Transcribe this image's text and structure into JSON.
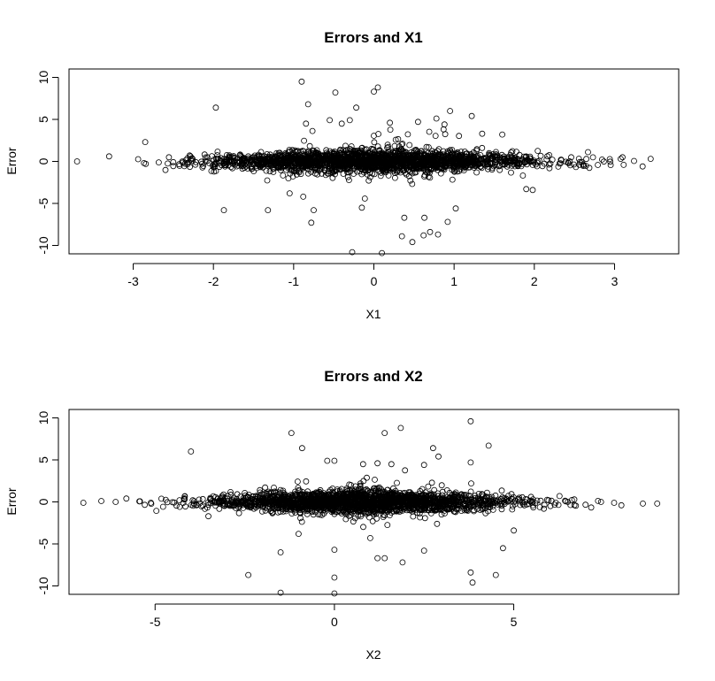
{
  "chart_data": [
    {
      "type": "scatter",
      "title": "Errors and X1",
      "xlabel": "X1",
      "ylabel": "Error",
      "xlim": [
        -3.8,
        3.8
      ],
      "ylim": [
        -11,
        11
      ],
      "xticks": [
        -3,
        -2,
        -1,
        0,
        1,
        2,
        3
      ],
      "yticks": [
        -10,
        -5,
        0,
        5,
        10
      ],
      "grid": false,
      "legend": "none",
      "cloud": {
        "n": 2200,
        "x_sd": 1.0,
        "x_range": [
          -3.3,
          3.3
        ],
        "y_sd_center": 0.75,
        "y_sd_edge": 0.25
      },
      "outliers": [
        {
          "x": -3.7,
          "y": 0.0
        },
        {
          "x": 3.45,
          "y": 0.3
        },
        {
          "x": 3.35,
          "y": -0.6
        },
        {
          "x": -3.3,
          "y": 0.6
        },
        {
          "x": -0.9,
          "y": 9.5
        },
        {
          "x": 0.05,
          "y": 8.8
        },
        {
          "x": 0.0,
          "y": 8.3
        },
        {
          "x": -0.48,
          "y": 8.2
        },
        {
          "x": -0.82,
          "y": 6.8
        },
        {
          "x": -0.22,
          "y": 6.4
        },
        {
          "x": -1.97,
          "y": 6.4
        },
        {
          "x": 0.95,
          "y": 6.0
        },
        {
          "x": 1.22,
          "y": 5.4
        },
        {
          "x": 0.78,
          "y": 5.1
        },
        {
          "x": -0.55,
          "y": 4.9
        },
        {
          "x": -0.3,
          "y": 4.9
        },
        {
          "x": 0.55,
          "y": 4.7
        },
        {
          "x": -0.4,
          "y": 4.5
        },
        {
          "x": 0.2,
          "y": 4.6
        },
        {
          "x": 0.88,
          "y": 4.4
        },
        {
          "x": 1.35,
          "y": 3.3
        },
        {
          "x": 1.6,
          "y": 3.2
        },
        {
          "x": -1.87,
          "y": -5.8
        },
        {
          "x": -1.32,
          "y": -5.8
        },
        {
          "x": -0.75,
          "y": -5.8
        },
        {
          "x": -0.78,
          "y": -7.3
        },
        {
          "x": -0.15,
          "y": -5.5
        },
        {
          "x": 0.38,
          "y": -6.7
        },
        {
          "x": 0.63,
          "y": -6.7
        },
        {
          "x": 1.02,
          "y": -5.6
        },
        {
          "x": 0.92,
          "y": -7.2
        },
        {
          "x": 0.35,
          "y": -8.9
        },
        {
          "x": 0.48,
          "y": -9.6
        },
        {
          "x": 0.7,
          "y": -8.4
        },
        {
          "x": 0.8,
          "y": -8.7
        },
        {
          "x": 0.62,
          "y": -8.8
        },
        {
          "x": -0.27,
          "y": -10.8
        },
        {
          "x": 0.1,
          "y": -10.9
        },
        {
          "x": 1.9,
          "y": -3.3
        },
        {
          "x": 1.98,
          "y": -3.4
        },
        {
          "x": -1.05,
          "y": -3.8
        },
        {
          "x": -0.88,
          "y": -4.2
        },
        {
          "x": 3.1,
          "y": 0.5
        },
        {
          "x": -2.85,
          "y": 2.3
        }
      ]
    },
    {
      "type": "scatter",
      "title": "Errors and X2",
      "xlabel": "X2",
      "ylabel": "Error",
      "xlim": [
        -7.4,
        9.6
      ],
      "ylim": [
        -11,
        11
      ],
      "xticks": [
        -5,
        0,
        5
      ],
      "yticks": [
        -10,
        -5,
        0,
        5,
        10
      ],
      "grid": false,
      "legend": "none",
      "cloud": {
        "n": 2200,
        "x_mean": 0.8,
        "x_sd": 2.2,
        "x_range": [
          -5.5,
          7.5
        ],
        "y_sd_center": 0.75,
        "y_sd_edge": 0.25
      },
      "outliers": [
        {
          "x": -7.0,
          "y": -0.1
        },
        {
          "x": -6.5,
          "y": 0.1
        },
        {
          "x": -6.1,
          "y": 0.0
        },
        {
          "x": -5.8,
          "y": 0.4
        },
        {
          "x": 9.0,
          "y": -0.2
        },
        {
          "x": 8.6,
          "y": -0.2
        },
        {
          "x": 8.0,
          "y": -0.4
        },
        {
          "x": 7.8,
          "y": -0.1
        },
        {
          "x": 3.8,
          "y": 9.6
        },
        {
          "x": 1.85,
          "y": 8.8
        },
        {
          "x": 1.4,
          "y": 8.2
        },
        {
          "x": -1.2,
          "y": 8.2
        },
        {
          "x": 4.3,
          "y": 6.7
        },
        {
          "x": -0.9,
          "y": 6.4
        },
        {
          "x": 2.75,
          "y": 6.4
        },
        {
          "x": -4.0,
          "y": 6.0
        },
        {
          "x": 2.9,
          "y": 5.4
        },
        {
          "x": -0.2,
          "y": 4.9
        },
        {
          "x": 0.0,
          "y": 4.9
        },
        {
          "x": 3.8,
          "y": 4.7
        },
        {
          "x": 1.2,
          "y": 4.6
        },
        {
          "x": 0.8,
          "y": 4.5
        },
        {
          "x": 2.5,
          "y": 4.4
        },
        {
          "x": -2.4,
          "y": -8.7
        },
        {
          "x": -1.5,
          "y": -10.8
        },
        {
          "x": 0.0,
          "y": -10.9
        },
        {
          "x": 0.0,
          "y": -9.0
        },
        {
          "x": 3.85,
          "y": -9.6
        },
        {
          "x": 3.8,
          "y": -8.4
        },
        {
          "x": 4.5,
          "y": -8.7
        },
        {
          "x": 1.9,
          "y": -7.2
        },
        {
          "x": 1.2,
          "y": -6.7
        },
        {
          "x": 1.4,
          "y": -6.7
        },
        {
          "x": -1.5,
          "y": -6.0
        },
        {
          "x": 0.0,
          "y": -5.7
        },
        {
          "x": 2.5,
          "y": -5.8
        },
        {
          "x": 4.7,
          "y": -5.5
        },
        {
          "x": 1.0,
          "y": -4.3
        },
        {
          "x": -1.0,
          "y": -3.8
        },
        {
          "x": 5.0,
          "y": -3.4
        }
      ]
    }
  ]
}
